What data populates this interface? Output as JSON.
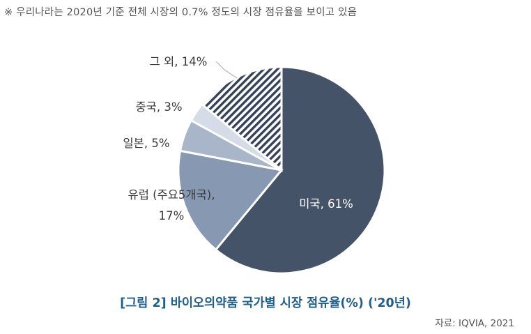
{
  "note": "※ 우리나라는 2020년 기준 전체 시장의 0.7% 정도의 시장 점유율을 보이고 있음",
  "chart_data": {
    "type": "pie",
    "title": "[그림 2] 바이오의약품 국가별 시장 점유율(%) ('20년)",
    "slices": [
      {
        "label": "미국",
        "value": 61,
        "text": "미국, 61%",
        "color": "#455368",
        "pattern": "none"
      },
      {
        "label": "유럽 (주요5개국)",
        "value": 17,
        "text_lines": [
          "유럽 (주요5개국),",
          "17%"
        ],
        "color": "#8798b3",
        "pattern": "none"
      },
      {
        "label": "일본",
        "value": 5,
        "text": "일본, 5%",
        "color": "#a9b6c9",
        "pattern": "none"
      },
      {
        "label": "중국",
        "value": 3,
        "text": "중국, 3%",
        "color": "#d5dce7",
        "pattern": "none"
      },
      {
        "label": "그 외",
        "value": 14,
        "text": "그 외, 14%",
        "color": "#344157",
        "pattern": "diagonal-stripes"
      }
    ]
  },
  "caption": "[그림 2] 바이오의약품 국가별 시장 점유율(%) ('20년)",
  "source": "자료: IQVIA, 2021"
}
